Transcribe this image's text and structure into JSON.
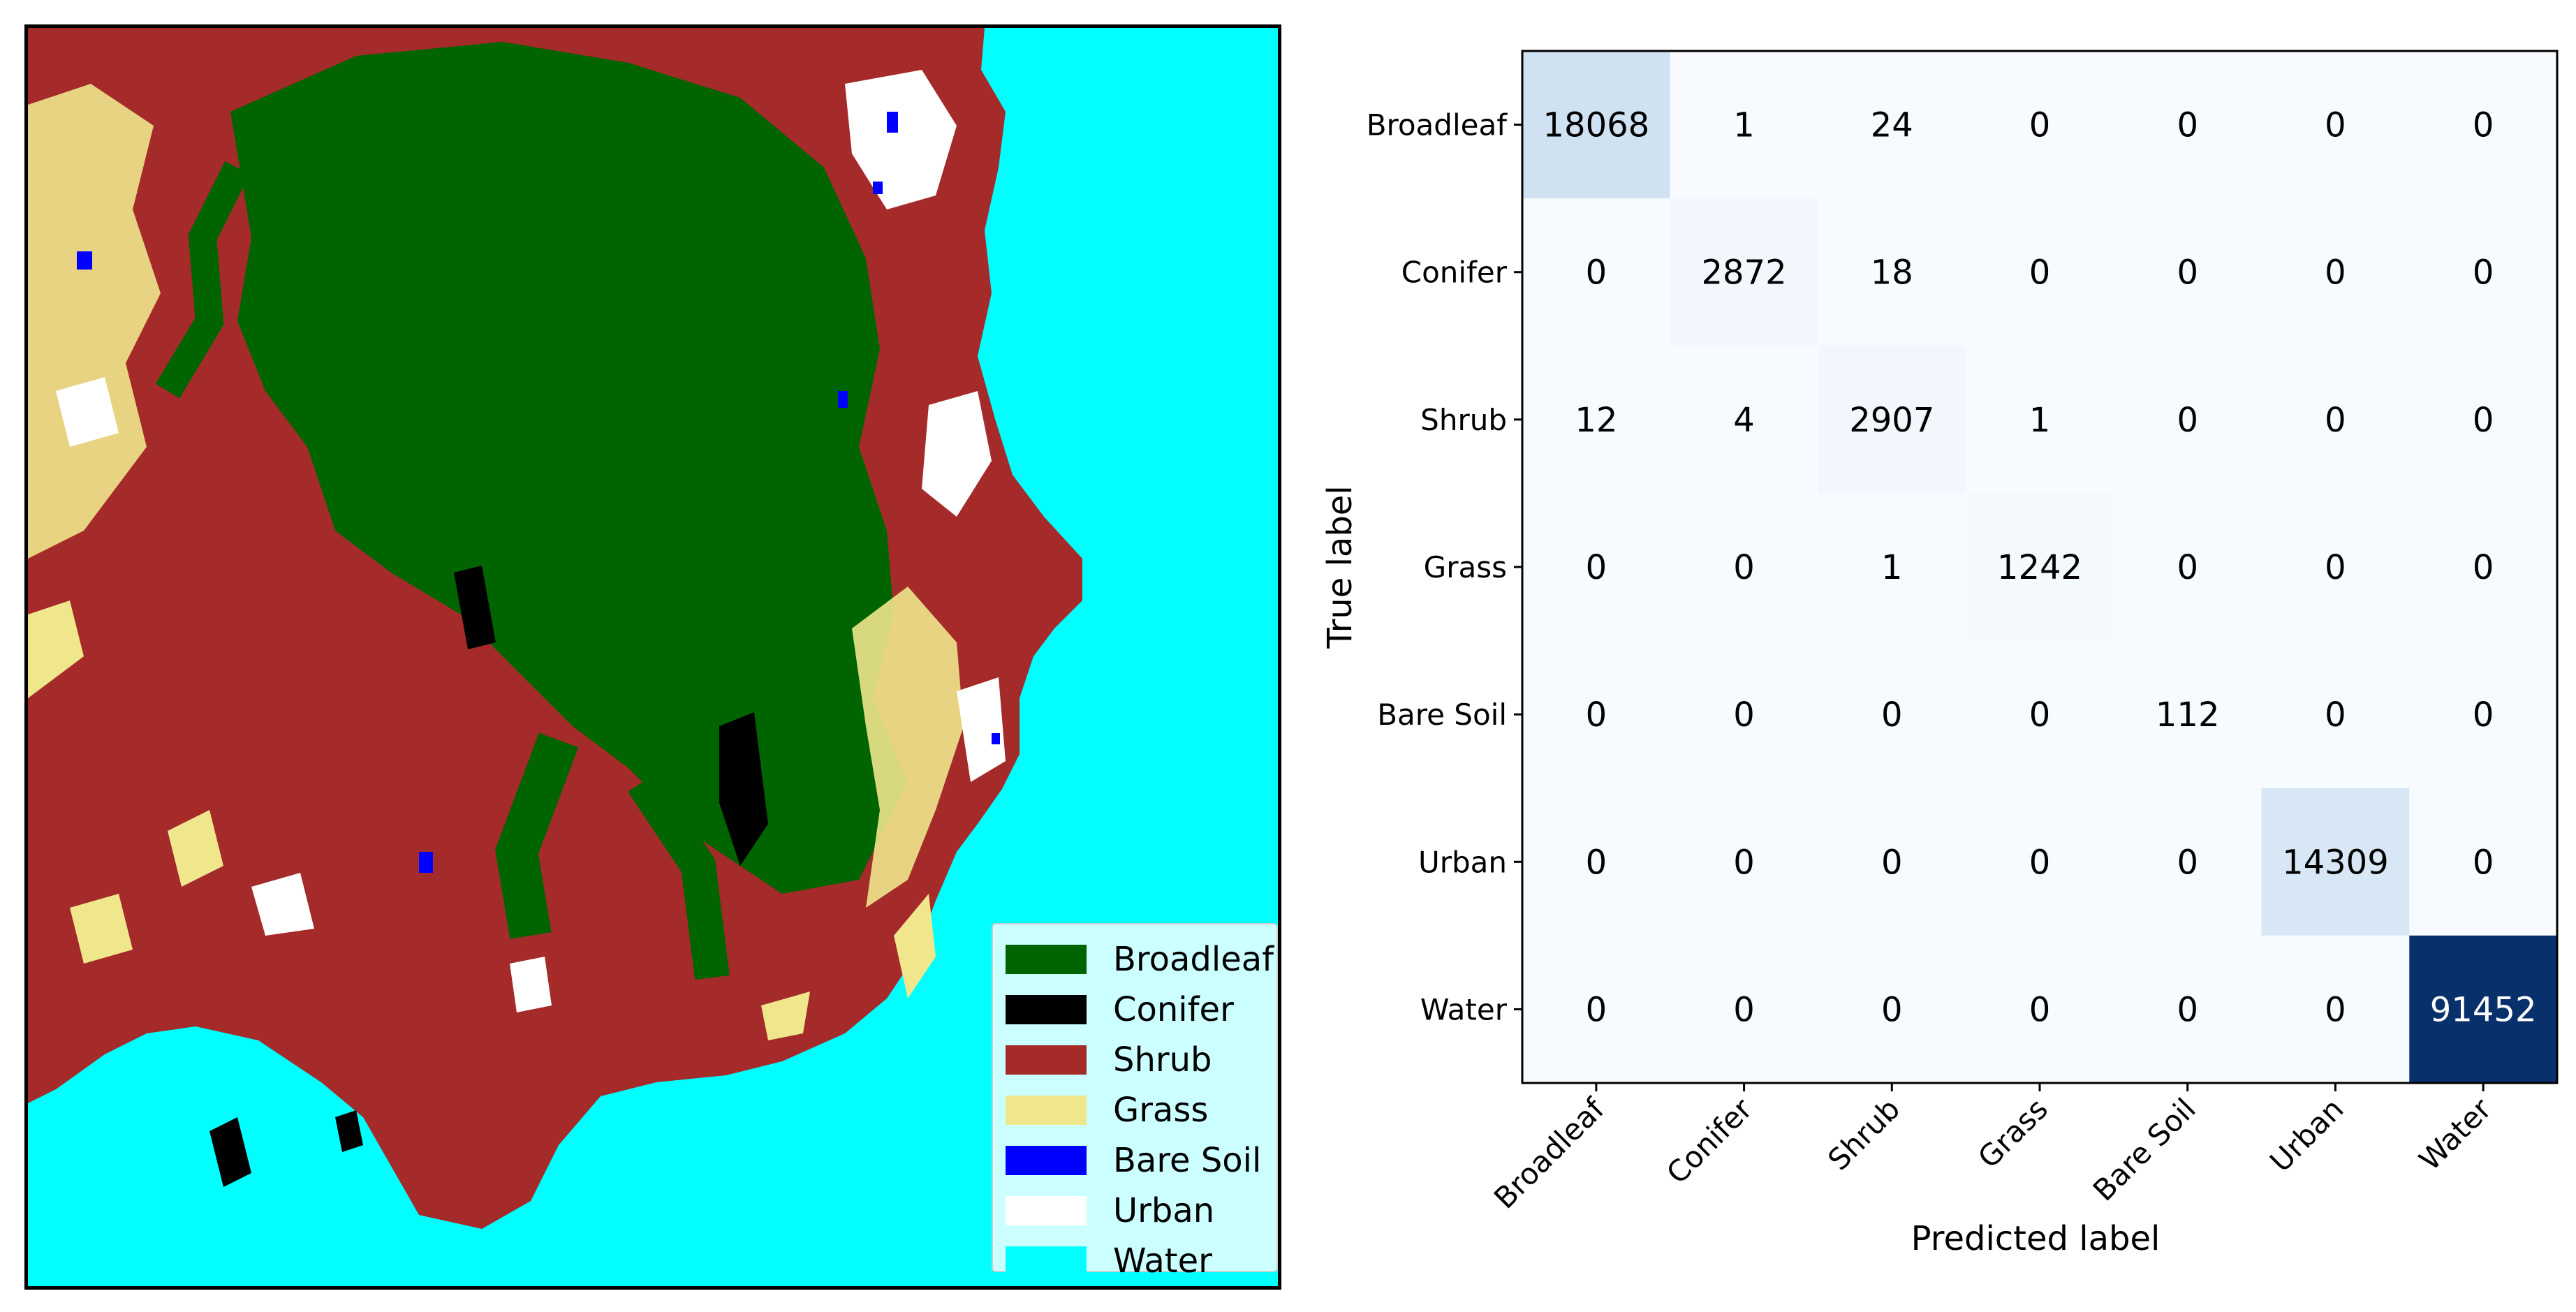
{
  "map": {
    "legend": [
      {
        "label": "Broadleaf",
        "color": "#006400"
      },
      {
        "label": "Conifer",
        "color": "#000000"
      },
      {
        "label": "Shrub",
        "color": "#a52a2a"
      },
      {
        "label": "Grass",
        "color": "#f0e68c"
      },
      {
        "label": "Bare Soil",
        "color": "#0000ff"
      },
      {
        "label": "Urban",
        "color": "#ffffff"
      },
      {
        "label": "Water",
        "color": "#00ffff"
      }
    ]
  },
  "chart_data": {
    "type": "heatmap",
    "title": "",
    "xlabel": "Predicted label",
    "ylabel": "True label",
    "x_categories": [
      "Broadleaf",
      "Conifer",
      "Shrub",
      "Grass",
      "Bare Soil",
      "Urban",
      "Water"
    ],
    "y_categories": [
      "Broadleaf",
      "Conifer",
      "Shrub",
      "Grass",
      "Bare Soil",
      "Urban",
      "Water"
    ],
    "colormap": "Blues",
    "values": [
      [
        18068,
        1,
        24,
        0,
        0,
        0,
        0
      ],
      [
        0,
        2872,
        18,
        0,
        0,
        0,
        0
      ],
      [
        12,
        4,
        2907,
        1,
        0,
        0,
        0
      ],
      [
        0,
        0,
        1,
        1242,
        0,
        0,
        0
      ],
      [
        0,
        0,
        0,
        0,
        112,
        0,
        0
      ],
      [
        0,
        0,
        0,
        0,
        0,
        14309,
        0
      ],
      [
        0,
        0,
        0,
        0,
        0,
        0,
        91452
      ]
    ]
  }
}
